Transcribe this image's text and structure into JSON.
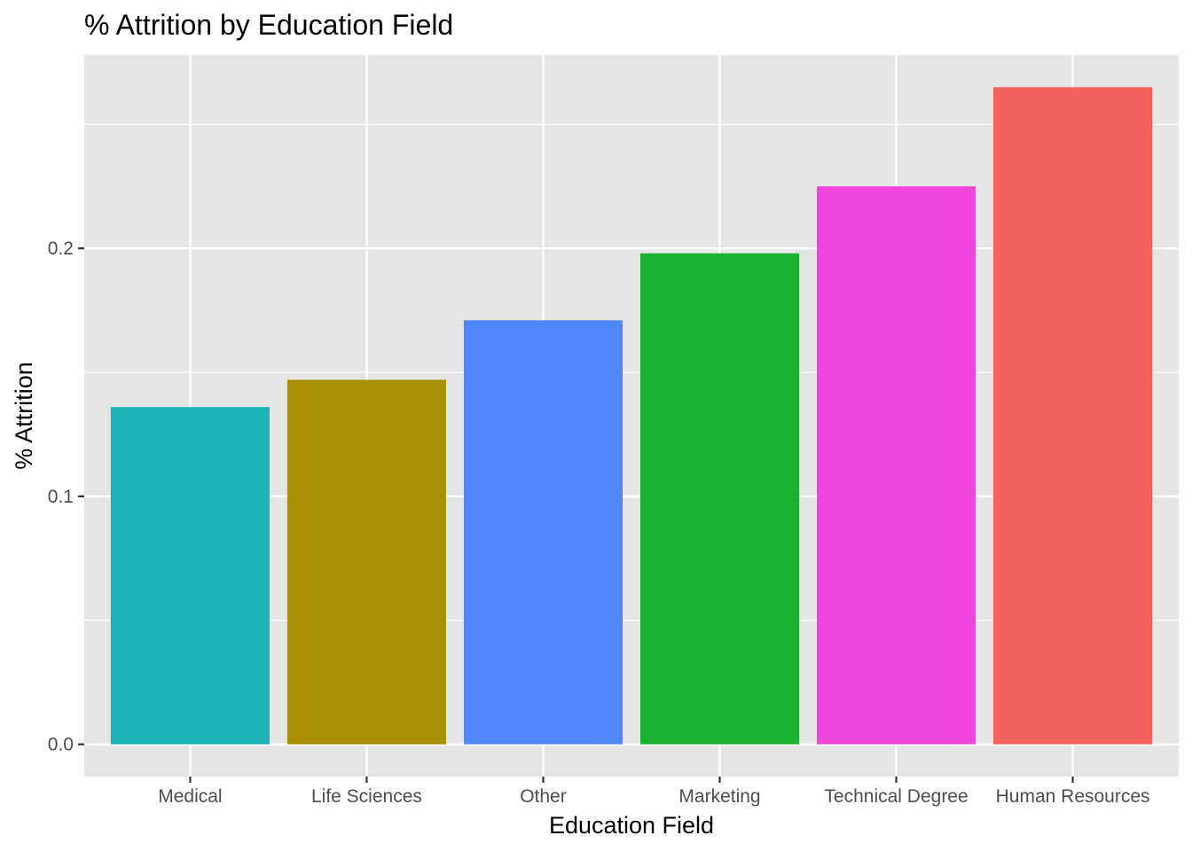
{
  "chart_data": {
    "type": "bar",
    "title": "% Attrition by Education Field",
    "xlabel": "Education Field",
    "ylabel": "% Attrition",
    "categories": [
      "Medical",
      "Life Sciences",
      "Other",
      "Marketing",
      "Technical Degree",
      "Human Resources"
    ],
    "values": [
      0.136,
      0.147,
      0.171,
      0.198,
      0.225,
      0.265
    ],
    "colors": [
      "#1AB4B8",
      "#A89002",
      "#5087FF",
      "#1AB22F",
      "#EF45DA",
      "#F3625C"
    ],
    "ylim": [
      -0.013,
      0.278
    ],
    "yticks": [
      0.0,
      0.1,
      0.2
    ],
    "ytick_labels": [
      "0.0",
      "0.1",
      "0.2"
    ],
    "grid": true,
    "legend": "none",
    "panel_background": "#E5E5E5",
    "grid_color": "#FFFFFF"
  }
}
